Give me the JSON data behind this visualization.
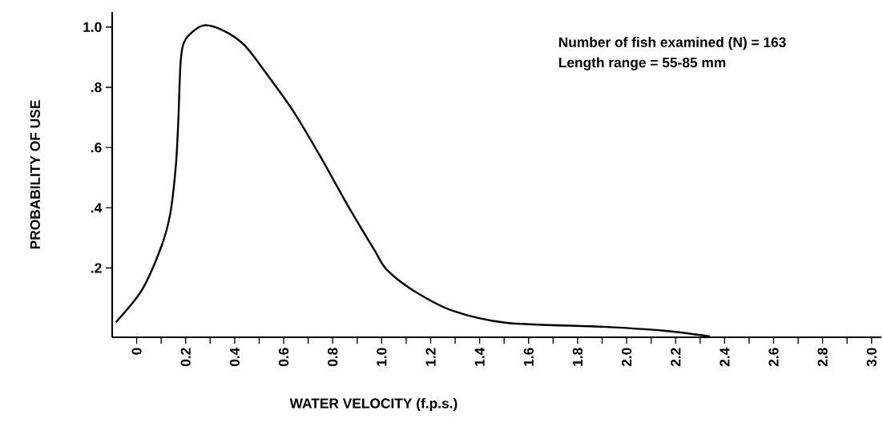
{
  "chart_data": {
    "type": "line",
    "xlabel": "WATER VELOCITY (f.p.s.)",
    "ylabel": "PROBABILITY OF USE",
    "annotations": [
      "Number of fish examined (N) = 163",
      "Length range = 55-85 mm"
    ],
    "x": [
      -0.085,
      0.02,
      0.1,
      0.137,
      0.16,
      0.17,
      0.18,
      0.2,
      0.27,
      0.35,
      0.44,
      0.53,
      0.64,
      0.75,
      0.86,
      0.97,
      1.02,
      1.13,
      1.29,
      1.51,
      1.9,
      2.15,
      2.34
    ],
    "series": [
      {
        "color": "#000000",
        "values": [
          0.02,
          0.125,
          0.27,
          0.38,
          0.54,
          0.69,
          0.89,
          0.96,
          1.005,
          0.99,
          0.94,
          0.845,
          0.72,
          0.57,
          0.41,
          0.26,
          0.195,
          0.125,
          0.058,
          0.018,
          0.005,
          -0.008,
          -0.027
        ]
      }
    ],
    "xlim": [
      -0.1,
      3.04
    ],
    "ylim": [
      -0.03,
      1.05
    ],
    "xticks": [
      {
        "value": 0,
        "label": "0"
      },
      {
        "value": 0.1,
        "label": null
      },
      {
        "value": 0.2,
        "label": "0.2"
      },
      {
        "value": 0.3,
        "label": null
      },
      {
        "value": 0.4,
        "label": "0.4"
      },
      {
        "value": 0.5,
        "label": null
      },
      {
        "value": 0.6,
        "label": "0.6"
      },
      {
        "value": 0.7,
        "label": null
      },
      {
        "value": 0.8,
        "label": "0.8"
      },
      {
        "value": 0.9,
        "label": null
      },
      {
        "value": 1.0,
        "label": "1.0"
      },
      {
        "value": 1.1,
        "label": null
      },
      {
        "value": 1.2,
        "label": "1.2"
      },
      {
        "value": 1.3,
        "label": null
      },
      {
        "value": 1.4,
        "label": "1.4"
      },
      {
        "value": 1.5,
        "label": null
      },
      {
        "value": 1.6,
        "label": "1.6"
      },
      {
        "value": 1.7,
        "label": null
      },
      {
        "value": 1.8,
        "label": "1.8"
      },
      {
        "value": 1.9,
        "label": null
      },
      {
        "value": 2.0,
        "label": "2.0"
      },
      {
        "value": 2.1,
        "label": null
      },
      {
        "value": 2.2,
        "label": "2.2"
      },
      {
        "value": 2.3,
        "label": null
      },
      {
        "value": 2.4,
        "label": "2.4"
      },
      {
        "value": 2.5,
        "label": null
      },
      {
        "value": 2.6,
        "label": "2.6"
      },
      {
        "value": 2.7,
        "label": null
      },
      {
        "value": 2.8,
        "label": "2.8"
      },
      {
        "value": 2.9,
        "label": null
      },
      {
        "value": 3.0,
        "label": "3.0"
      }
    ],
    "yticks": [
      {
        "value": 0.2,
        "label": ".2"
      },
      {
        "value": 0.4,
        "label": ".4"
      },
      {
        "value": 0.6,
        "label": ".6"
      },
      {
        "value": 0.8,
        "label": ".8"
      },
      {
        "value": 1.0,
        "label": "1.0"
      }
    ],
    "marker": "none",
    "line_style": "solid",
    "grid": false
  }
}
